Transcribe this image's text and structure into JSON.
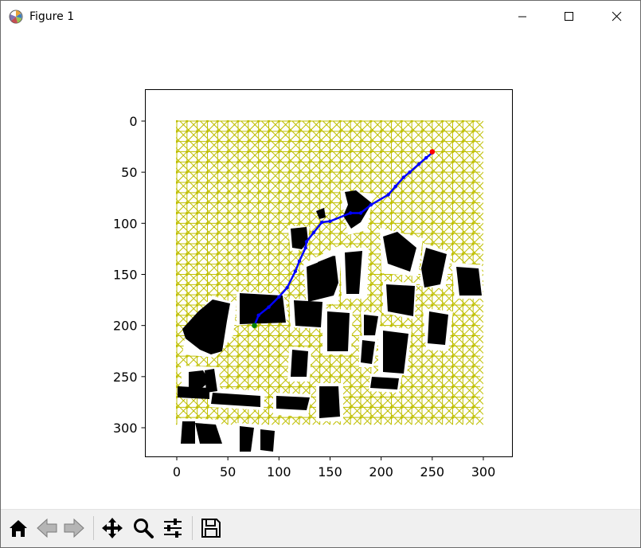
{
  "window": {
    "title": "Figure 1",
    "icon": "matplotlib-icon",
    "controls": [
      "minimize-icon",
      "maximize-icon",
      "close-icon"
    ]
  },
  "toolbar": {
    "buttons": [
      {
        "name": "home",
        "icon": "home-icon"
      },
      {
        "name": "back",
        "icon": "back-arrow-icon"
      },
      {
        "name": "forward",
        "icon": "forward-arrow-icon"
      },
      {
        "name": "pan",
        "icon": "move-icon"
      },
      {
        "name": "zoom",
        "icon": "zoom-icon"
      },
      {
        "name": "subplots",
        "icon": "sliders-icon"
      },
      {
        "name": "save",
        "icon": "save-icon"
      }
    ]
  },
  "chart_data": {
    "type": "scatter",
    "description_free": true,
    "title": "",
    "xlabel": "",
    "ylabel": "",
    "xlim": [
      -30,
      328
    ],
    "ylim": [
      328,
      -30
    ],
    "y_inverted": true,
    "xticks": [
      0,
      50,
      100,
      150,
      200,
      250,
      300
    ],
    "yticks": [
      0,
      50,
      100,
      150,
      200,
      250,
      300
    ],
    "grid": false,
    "grid_graph": {
      "color": "#bfbf00",
      "x_range": [
        0,
        297
      ],
      "y_range": [
        0,
        297
      ],
      "step": 10
    },
    "obstacles_color": "#000000",
    "path": {
      "color": "#0000ff",
      "points": [
        [
          76,
          200
        ],
        [
          80,
          190
        ],
        [
          90,
          182
        ],
        [
          100,
          172
        ],
        [
          108,
          163
        ],
        [
          116,
          147
        ],
        [
          120,
          137
        ],
        [
          126,
          124
        ],
        [
          127,
          118
        ],
        [
          134,
          109
        ],
        [
          142,
          99
        ],
        [
          150,
          98
        ],
        [
          170,
          90
        ],
        [
          180,
          90
        ],
        [
          190,
          82
        ],
        [
          207,
          72
        ],
        [
          214,
          64
        ],
        [
          222,
          55
        ],
        [
          228,
          50
        ],
        [
          237,
          42
        ],
        [
          244,
          36
        ],
        [
          250,
          31
        ]
      ]
    },
    "start": {
      "x": 76,
      "y": 200,
      "color": "#008000"
    },
    "goal": {
      "x": 250,
      "y": 30,
      "color": "#ff0000"
    }
  }
}
